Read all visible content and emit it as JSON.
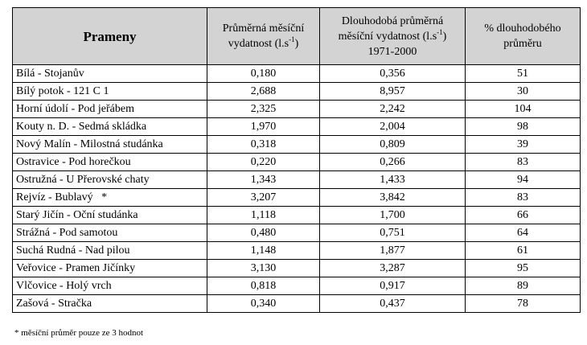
{
  "table": {
    "headers": {
      "springs": "Prameny",
      "monthly_a": "Průměrná měsíční",
      "monthly_b": "vydatnost (l.s",
      "monthly_sup": "-1",
      "monthly_c": ")",
      "longterm_a": "Dlouhodobá průměrná",
      "longterm_b": "měsíční vydatnost (l.s",
      "longterm_sup": "-1",
      "longterm_c": ")",
      "longterm_d": "1971-2000",
      "pct_a": "% dlouhodobého",
      "pct_b": "průměru"
    },
    "rows": [
      {
        "name": "Bílá - Stojanův",
        "monthly": "0,180",
        "longterm": "0,356",
        "pct": "51"
      },
      {
        "name": "Bílý potok - 121 C 1",
        "monthly": "2,688",
        "longterm": "8,957",
        "pct": "30"
      },
      {
        "name": "Horní údolí - Pod jeřábem",
        "monthly": "2,325",
        "longterm": "2,242",
        "pct": "104"
      },
      {
        "name": "Kouty n. D. - Sedmá skládka",
        "monthly": "1,970",
        "longterm": "2,004",
        "pct": "98"
      },
      {
        "name": "Nový Malín - Milostná studánka",
        "monthly": "0,318",
        "longterm": "0,809",
        "pct": "39"
      },
      {
        "name": "Ostravice - Pod horečkou",
        "monthly": "0,220",
        "longterm": "0,266",
        "pct": "83"
      },
      {
        "name": "Ostružná - U Přerovské chaty",
        "monthly": "1,343",
        "longterm": "1,433",
        "pct": "94"
      },
      {
        "name": "Rejvíz - Bublavý   *",
        "monthly": "3,207",
        "longterm": "3,842",
        "pct": "83"
      },
      {
        "name": "Starý Jičín - Oční studánka",
        "monthly": "1,118",
        "longterm": "1,700",
        "pct": "66"
      },
      {
        "name": "Strážná - Pod samotou",
        "monthly": "0,480",
        "longterm": "0,751",
        "pct": "64"
      },
      {
        "name": "Suchá Rudná - Nad pilou",
        "monthly": "1,148",
        "longterm": "1,877",
        "pct": "61"
      },
      {
        "name": "Veřovice - Pramen Jičínky",
        "monthly": "3,130",
        "longterm": "3,287",
        "pct": "95"
      },
      {
        "name": "Vlčovice - Holý vrch",
        "monthly": "0,818",
        "longterm": "0,917",
        "pct": "89"
      },
      {
        "name": "Zašová - Stračka",
        "monthly": "0,340",
        "longterm": "0,437",
        "pct": "78"
      }
    ]
  },
  "footnote": "*   měsíční průměr pouze ze 3 hodnot"
}
